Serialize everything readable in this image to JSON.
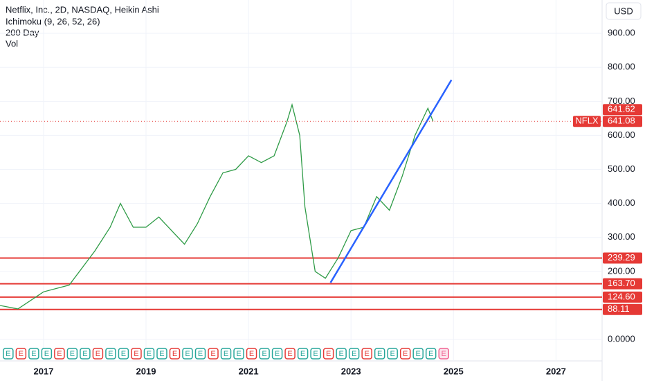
{
  "chart_data": {
    "type": "line",
    "title": "Netflix, Inc., 2D, NASDAQ, Heikin Ashi",
    "indicators": [
      "Ichimoku (9, 26, 52, 26)",
      "200 Day",
      "Vol"
    ],
    "currency": "USD",
    "symbol": "NFLX",
    "last_price": 641.08,
    "ha_close": 641.62,
    "xlim": [
      2016.15,
      2027.9
    ],
    "xticks": [
      2017,
      2019,
      2021,
      2023,
      2025,
      2027
    ],
    "ylim": [
      -63,
      998
    ],
    "yticks": [
      {
        "value": 0,
        "label": "0.0000"
      },
      {
        "value": 200,
        "label": "200.00"
      },
      {
        "value": 300,
        "label": "300.00"
      },
      {
        "value": 400,
        "label": "400.00"
      },
      {
        "value": 500,
        "label": "500.00"
      },
      {
        "value": 600,
        "label": "600.00"
      },
      {
        "value": 700,
        "label": "700.00"
      },
      {
        "value": 800,
        "label": "800.00"
      },
      {
        "value": 900,
        "label": "900.00"
      }
    ],
    "series": [
      {
        "color": "#2e9b46",
        "x": [
          2016.15,
          2016.5,
          2017.0,
          2017.5,
          2018.0,
          2018.3,
          2018.5,
          2018.75,
          2019.0,
          2019.25,
          2019.5,
          2019.75,
          2020.0,
          2020.25,
          2020.5,
          2020.75,
          2021.0,
          2021.25,
          2021.5,
          2021.75,
          2021.85,
          2022.0,
          2022.1,
          2022.3,
          2022.5,
          2022.75,
          2023.0,
          2023.25,
          2023.5,
          2023.75,
          2024.0,
          2024.25,
          2024.5,
          2024.6
        ],
        "values": [
          100,
          90,
          140,
          160,
          260,
          330,
          400,
          330,
          330,
          360,
          320,
          280,
          340,
          420,
          490,
          500,
          540,
          520,
          540,
          640,
          690,
          600,
          390,
          200,
          180,
          240,
          320,
          330,
          420,
          380,
          480,
          600,
          680,
          641.62
        ]
      }
    ],
    "trendline": {
      "color": "#2962ff",
      "x": [
        2022.6,
        2024.96
      ],
      "values": [
        167,
        763
      ]
    },
    "levels": {
      "color": "#e53935",
      "values": [
        239.29,
        163.7,
        124.6,
        88.11
      ],
      "value_labels": [
        "239.29",
        "163.70",
        "124.60",
        "88.11"
      ]
    },
    "earnings": {
      "label": "E",
      "x": [
        2016.31,
        2016.56,
        2016.81,
        2017.06,
        2017.31,
        2017.56,
        2017.81,
        2018.06,
        2018.31,
        2018.56,
        2018.81,
        2019.06,
        2019.31,
        2019.56,
        2019.81,
        2020.06,
        2020.31,
        2020.56,
        2020.81,
        2021.06,
        2021.31,
        2021.56,
        2021.81,
        2022.06,
        2022.31,
        2022.56,
        2022.81,
        2023.06,
        2023.31,
        2023.56,
        2023.81,
        2024.06,
        2024.31,
        2024.56,
        2024.81
      ]
    }
  }
}
